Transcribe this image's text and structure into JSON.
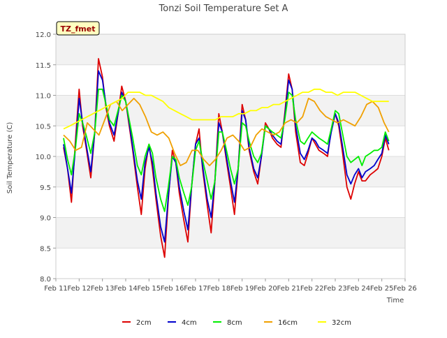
{
  "chart_data": {
    "type": "line",
    "title": "Tonzi Soil Temperature Set A",
    "xlabel": "Time",
    "ylabel": "Soil Temperature (C)",
    "annotation": "TZ_fmet",
    "xlim": [
      11,
      26
    ],
    "ylim": [
      8.0,
      12.0
    ],
    "x_ticks": [
      11,
      12,
      13,
      14,
      15,
      16,
      17,
      18,
      19,
      20,
      21,
      22,
      23,
      24,
      25,
      26
    ],
    "x_tick_labels": [
      "Feb 11",
      "Feb 12",
      "Feb 13",
      "Feb 14",
      "Feb 15",
      "Feb 16",
      "Feb 17",
      "Feb 18",
      "Feb 19",
      "Feb 20",
      "Feb 21",
      "Feb 22",
      "Feb 23",
      "Feb 24",
      "Feb 25",
      "Feb 26"
    ],
    "y_ticks": [
      8.0,
      8.5,
      9.0,
      9.5,
      10.0,
      10.5,
      11.0,
      11.5,
      12.0
    ],
    "y_tick_labels": [
      "8.0",
      "8.5",
      "9.0",
      "9.5",
      "10.0",
      "10.5",
      "11.0",
      "11.5",
      "12.0"
    ],
    "grid": "horizontal bands",
    "legend_position": "bottom",
    "series": [
      {
        "name": "2cm",
        "color": "#dd0000",
        "x": [
          11.33,
          11.5,
          11.67,
          11.83,
          12.0,
          12.15,
          12.3,
          12.5,
          12.67,
          12.83,
          13.0,
          13.15,
          13.3,
          13.5,
          13.67,
          13.83,
          14.0,
          14.15,
          14.3,
          14.5,
          14.67,
          14.83,
          15.0,
          15.15,
          15.3,
          15.5,
          15.67,
          15.83,
          16.0,
          16.15,
          16.3,
          16.5,
          16.67,
          16.83,
          17.0,
          17.15,
          17.3,
          17.5,
          17.67,
          17.83,
          18.0,
          18.15,
          18.3,
          18.5,
          18.67,
          18.83,
          19.0,
          19.15,
          19.3,
          19.5,
          19.67,
          19.83,
          20.0,
          20.15,
          20.3,
          20.5,
          20.67,
          20.83,
          21.0,
          21.15,
          21.3,
          21.5,
          21.67,
          21.83,
          22.0,
          22.15,
          22.3,
          22.5,
          22.67,
          22.83,
          23.0,
          23.15,
          23.3,
          23.5,
          23.67,
          23.83,
          24.0,
          24.15,
          24.3,
          24.5,
          24.67,
          24.83,
          25.0,
          25.15,
          25.3
        ],
        "y": [
          10.15,
          9.8,
          9.25,
          10.2,
          11.1,
          10.5,
          10.15,
          9.65,
          10.4,
          11.6,
          11.3,
          10.8,
          10.5,
          10.25,
          10.7,
          11.15,
          10.9,
          10.5,
          10.1,
          9.5,
          9.05,
          9.8,
          10.2,
          9.8,
          9.3,
          8.7,
          8.35,
          9.3,
          10.1,
          9.9,
          9.4,
          8.95,
          8.6,
          9.5,
          10.2,
          10.45,
          9.8,
          9.2,
          8.75,
          9.6,
          10.7,
          10.4,
          10.0,
          9.5,
          9.05,
          9.8,
          10.85,
          10.6,
          10.1,
          9.75,
          9.55,
          10.0,
          10.55,
          10.45,
          10.3,
          10.2,
          10.15,
          10.7,
          11.35,
          11.1,
          10.4,
          9.9,
          9.85,
          10.05,
          10.3,
          10.2,
          10.1,
          10.05,
          10.0,
          10.45,
          10.7,
          10.5,
          10.1,
          9.5,
          9.3,
          9.55,
          9.75,
          9.6,
          9.6,
          9.7,
          9.75,
          9.8,
          10.0,
          10.3,
          10.1
        ]
      },
      {
        "name": "4cm",
        "color": "#0000cc",
        "x": [
          11.33,
          11.5,
          11.67,
          11.83,
          12.0,
          12.15,
          12.3,
          12.5,
          12.67,
          12.83,
          13.0,
          13.15,
          13.3,
          13.5,
          13.67,
          13.83,
          14.0,
          14.15,
          14.3,
          14.5,
          14.67,
          14.83,
          15.0,
          15.15,
          15.3,
          15.5,
          15.67,
          15.83,
          16.0,
          16.15,
          16.3,
          16.5,
          16.67,
          16.83,
          17.0,
          17.15,
          17.3,
          17.5,
          17.67,
          17.83,
          18.0,
          18.15,
          18.3,
          18.5,
          18.67,
          18.83,
          19.0,
          19.15,
          19.3,
          19.5,
          19.67,
          19.83,
          20.0,
          20.15,
          20.3,
          20.5,
          20.67,
          20.83,
          21.0,
          21.15,
          21.3,
          21.5,
          21.67,
          21.83,
          22.0,
          22.15,
          22.3,
          22.5,
          22.67,
          22.83,
          23.0,
          23.15,
          23.3,
          23.5,
          23.67,
          23.83,
          24.0,
          24.15,
          24.3,
          24.5,
          24.67,
          24.83,
          25.0,
          25.15,
          25.3
        ],
        "y": [
          10.2,
          9.8,
          9.4,
          10.1,
          10.95,
          10.55,
          10.2,
          9.75,
          10.4,
          11.4,
          11.25,
          10.85,
          10.55,
          10.35,
          10.7,
          11.05,
          10.9,
          10.55,
          10.15,
          9.6,
          9.3,
          9.9,
          10.15,
          9.9,
          9.4,
          8.85,
          8.6,
          9.35,
          10.0,
          9.9,
          9.5,
          9.1,
          8.8,
          9.5,
          10.2,
          10.3,
          9.85,
          9.3,
          9.0,
          9.6,
          10.55,
          10.4,
          10.05,
          9.6,
          9.25,
          9.8,
          10.75,
          10.6,
          10.15,
          9.8,
          9.65,
          10.0,
          10.5,
          10.45,
          10.35,
          10.25,
          10.2,
          10.65,
          11.25,
          11.1,
          10.5,
          10.05,
          9.95,
          10.1,
          10.3,
          10.25,
          10.15,
          10.1,
          10.05,
          10.4,
          10.7,
          10.55,
          10.2,
          9.7,
          9.55,
          9.7,
          9.8,
          9.65,
          9.75,
          9.8,
          9.85,
          9.95,
          10.05,
          10.35,
          10.2
        ]
      },
      {
        "name": "8cm",
        "color": "#00ee00",
        "x": [
          11.33,
          11.5,
          11.67,
          11.83,
          12.0,
          12.15,
          12.3,
          12.5,
          12.67,
          12.83,
          13.0,
          13.15,
          13.3,
          13.5,
          13.67,
          13.83,
          14.0,
          14.15,
          14.3,
          14.5,
          14.67,
          14.83,
          15.0,
          15.15,
          15.3,
          15.5,
          15.67,
          15.83,
          16.0,
          16.15,
          16.3,
          16.5,
          16.67,
          16.83,
          17.0,
          17.15,
          17.3,
          17.5,
          17.67,
          17.83,
          18.0,
          18.15,
          18.3,
          18.5,
          18.67,
          18.83,
          19.0,
          19.15,
          19.3,
          19.5,
          19.67,
          19.83,
          20.0,
          20.15,
          20.3,
          20.5,
          20.67,
          20.83,
          21.0,
          21.15,
          21.3,
          21.5,
          21.67,
          21.83,
          22.0,
          22.15,
          22.3,
          22.5,
          22.67,
          22.83,
          23.0,
          23.15,
          23.3,
          23.5,
          23.67,
          23.83,
          24.0,
          24.15,
          24.3,
          24.5,
          24.67,
          24.83,
          25.0,
          25.15,
          25.3
        ],
        "y": [
          10.3,
          9.95,
          9.7,
          10.1,
          10.7,
          10.55,
          10.35,
          10.05,
          10.4,
          11.1,
          11.1,
          10.85,
          10.6,
          10.5,
          10.75,
          11.0,
          10.9,
          10.6,
          10.3,
          9.85,
          9.7,
          10.0,
          10.2,
          10.05,
          9.65,
          9.3,
          9.1,
          9.5,
          10.0,
          9.95,
          9.65,
          9.4,
          9.2,
          9.5,
          10.1,
          10.25,
          9.95,
          9.6,
          9.3,
          9.6,
          10.4,
          10.4,
          10.15,
          9.8,
          9.55,
          9.8,
          10.55,
          10.5,
          10.25,
          10.0,
          9.9,
          10.05,
          10.5,
          10.45,
          10.4,
          10.35,
          10.3,
          10.6,
          11.05,
          11.0,
          10.6,
          10.25,
          10.2,
          10.3,
          10.4,
          10.35,
          10.3,
          10.25,
          10.2,
          10.45,
          10.75,
          10.7,
          10.4,
          10.0,
          9.9,
          9.95,
          10.0,
          9.85,
          10.0,
          10.05,
          10.1,
          10.1,
          10.15,
          10.4,
          10.25
        ]
      },
      {
        "name": "16cm",
        "color": "#f0a000",
        "x": [
          11.33,
          11.6,
          11.85,
          12.1,
          12.35,
          12.6,
          12.85,
          13.1,
          13.35,
          13.6,
          13.85,
          14.1,
          14.35,
          14.6,
          14.85,
          15.1,
          15.35,
          15.6,
          15.85,
          16.1,
          16.35,
          16.6,
          16.85,
          17.1,
          17.35,
          17.6,
          17.85,
          18.1,
          18.35,
          18.6,
          18.85,
          19.1,
          19.35,
          19.6,
          19.85,
          20.1,
          20.35,
          20.6,
          20.85,
          21.1,
          21.35,
          21.6,
          21.85,
          22.1,
          22.35,
          22.6,
          22.85,
          23.1,
          23.35,
          23.6,
          23.85,
          24.1,
          24.35,
          24.6,
          24.85,
          25.1,
          25.3
        ],
        "y": [
          10.35,
          10.25,
          10.1,
          10.15,
          10.55,
          10.45,
          10.35,
          10.6,
          10.85,
          10.9,
          10.75,
          10.85,
          10.95,
          10.85,
          10.65,
          10.4,
          10.35,
          10.4,
          10.3,
          10.05,
          9.85,
          9.9,
          10.1,
          10.1,
          9.95,
          9.85,
          9.95,
          10.1,
          10.3,
          10.35,
          10.25,
          10.1,
          10.15,
          10.35,
          10.45,
          10.4,
          10.35,
          10.4,
          10.55,
          10.6,
          10.55,
          10.65,
          10.95,
          10.9,
          10.75,
          10.65,
          10.6,
          10.55,
          10.6,
          10.55,
          10.5,
          10.65,
          10.85,
          10.9,
          10.8,
          10.55,
          10.4
        ]
      },
      {
        "name": "32cm",
        "color": "#ffff00",
        "x": [
          11.33,
          11.6,
          11.85,
          12.1,
          12.35,
          12.6,
          12.85,
          13.1,
          13.35,
          13.6,
          13.85,
          14.1,
          14.35,
          14.6,
          14.85,
          15.1,
          15.35,
          15.6,
          15.85,
          16.1,
          16.35,
          16.6,
          16.85,
          17.1,
          17.35,
          17.6,
          17.85,
          18.1,
          18.35,
          18.6,
          18.85,
          19.1,
          19.35,
          19.6,
          19.85,
          20.1,
          20.35,
          20.6,
          20.85,
          21.1,
          21.35,
          21.6,
          21.85,
          22.1,
          22.35,
          22.6,
          22.85,
          23.1,
          23.35,
          23.6,
          23.85,
          24.1,
          24.35,
          24.6,
          24.85,
          25.1,
          25.3
        ],
        "y": [
          10.45,
          10.5,
          10.55,
          10.6,
          10.65,
          10.7,
          10.75,
          10.8,
          10.85,
          10.9,
          10.95,
          11.05,
          11.05,
          11.05,
          11.0,
          11.0,
          10.95,
          10.9,
          10.8,
          10.75,
          10.7,
          10.65,
          10.6,
          10.6,
          10.6,
          10.6,
          10.6,
          10.65,
          10.65,
          10.65,
          10.7,
          10.7,
          10.75,
          10.75,
          10.8,
          10.8,
          10.85,
          10.85,
          10.9,
          10.95,
          11.0,
          11.05,
          11.05,
          11.1,
          11.1,
          11.05,
          11.05,
          11.0,
          11.05,
          11.05,
          11.05,
          11.0,
          10.95,
          10.9,
          10.9,
          10.9,
          10.9
        ]
      }
    ]
  }
}
